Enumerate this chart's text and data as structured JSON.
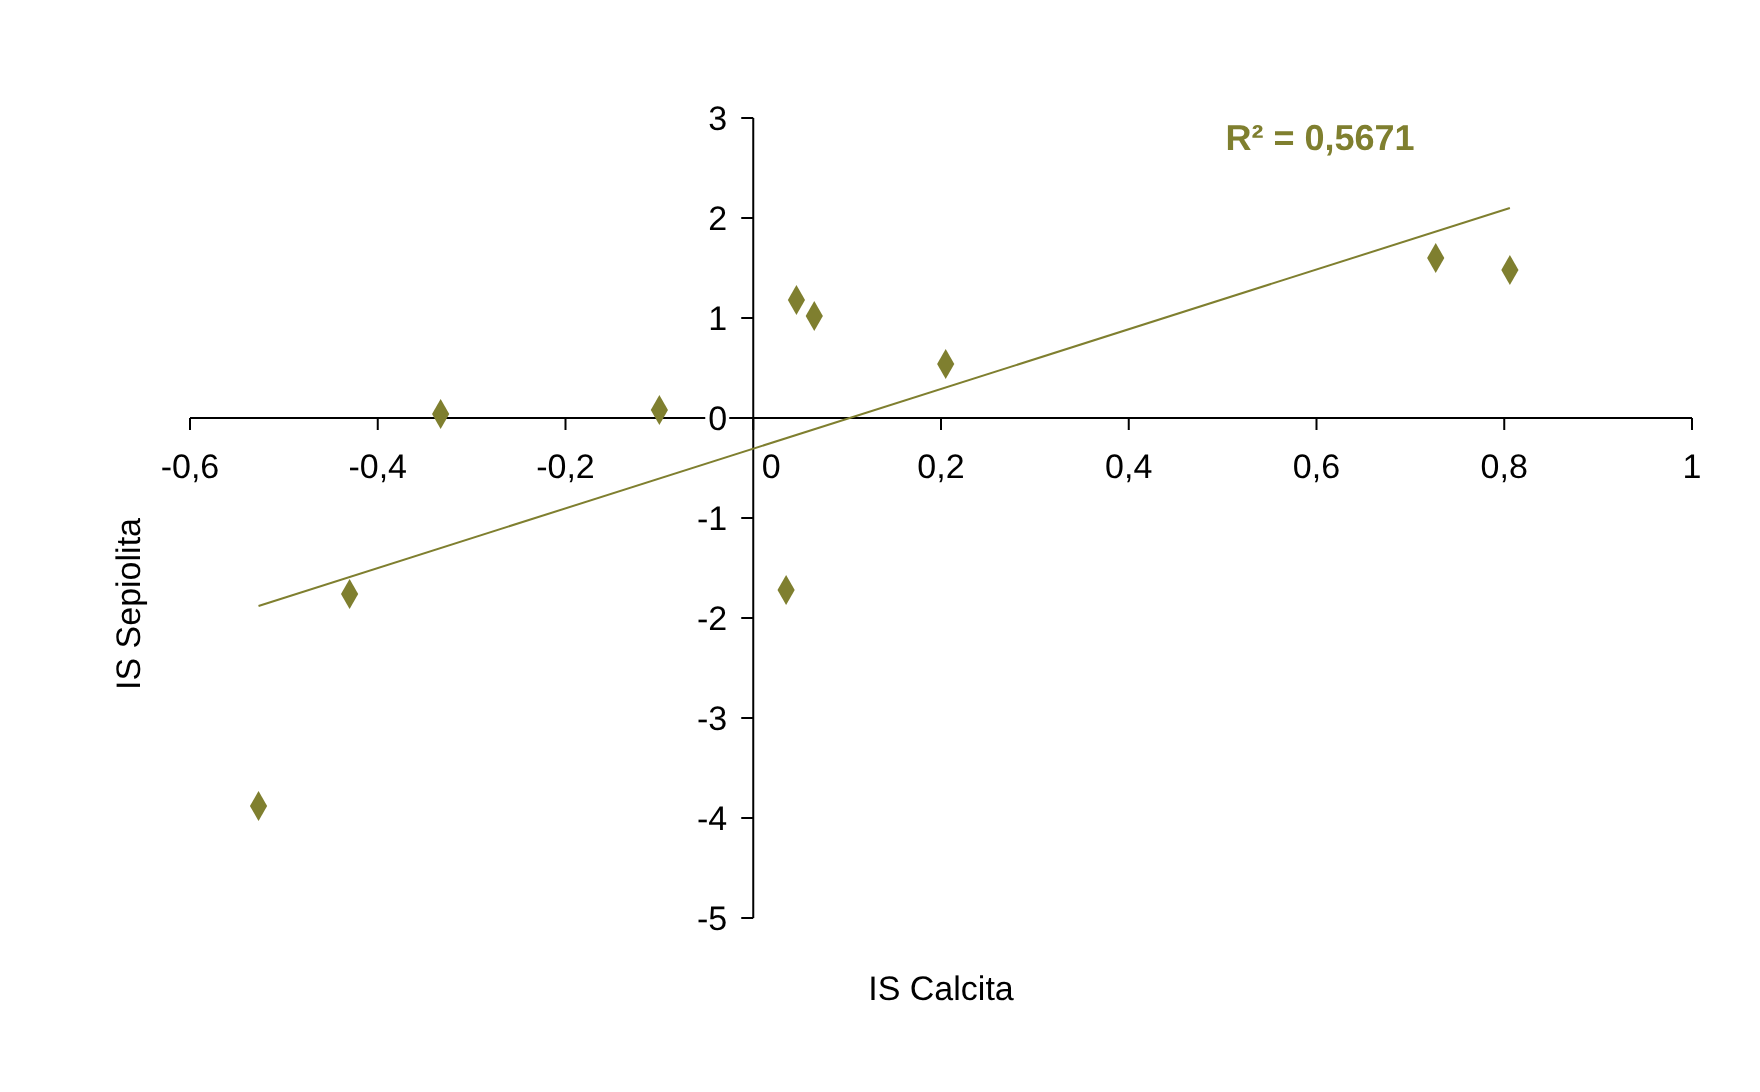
{
  "chart_data": {
    "type": "scatter",
    "xlabel": "IS Calcita",
    "ylabel": "IS Sepiolita",
    "annotations": [
      "R² = 0,5671"
    ],
    "xlim": [
      -0.6,
      1
    ],
    "ylim": [
      -5,
      3
    ],
    "xticks": [
      {
        "value": -0.6,
        "label": "-0,6"
      },
      {
        "value": -0.4,
        "label": "-0,4"
      },
      {
        "value": -0.2,
        "label": "-0,2"
      },
      0,
      {
        "value": 0.2,
        "label": "0,2"
      },
      {
        "value": 0.4,
        "label": "0,4"
      },
      {
        "value": 0.6,
        "label": "0,6"
      },
      {
        "value": 0.8,
        "label": "0,8"
      },
      1
    ],
    "yticks": [
      -5,
      -4,
      -3,
      -2,
      -1,
      0,
      1,
      2,
      3
    ],
    "series": [
      {
        "marker": "diamond",
        "color": "#7f7f2f",
        "x": [
          -0.527,
          -0.43,
          -0.333,
          -0.1,
          0.046,
          0.065,
          0.035,
          0.205,
          0.727,
          0.806
        ],
        "values": [
          -3.88,
          -1.76,
          0.04,
          0.08,
          1.18,
          1.02,
          -1.72,
          0.54,
          1.6,
          1.48
        ]
      },
      {
        "type": "line",
        "color": "#7f7f2f",
        "x": [
          -0.527,
          0.806
        ],
        "values": [
          -1.88,
          2.1
        ]
      }
    ]
  }
}
